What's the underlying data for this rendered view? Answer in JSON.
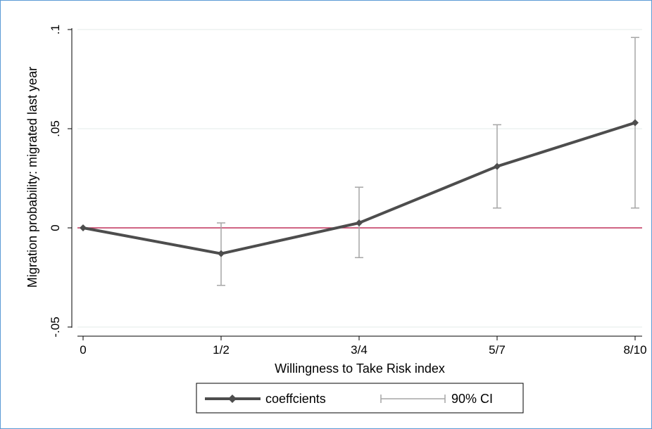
{
  "chart_data": {
    "type": "line",
    "title": "",
    "xlabel": "Willingness to Take Risk index",
    "ylabel": "Migration probability: migrated last year",
    "categories": [
      "0",
      "1/2",
      "3/4",
      "5/7",
      "8/10"
    ],
    "ylim": [
      -0.05,
      0.1
    ],
    "yticks": [
      -0.05,
      0,
      0.05,
      0.1
    ],
    "ytick_labels": [
      "-.05",
      "0",
      ".05",
      ".1"
    ],
    "grid": true,
    "series": [
      {
        "name": "coeffcients",
        "values": [
          0,
          -0.013,
          0.0025,
          0.031,
          0.053
        ],
        "ci_low": [
          null,
          -0.029,
          -0.015,
          0.01,
          0.01
        ],
        "ci_high": [
          null,
          0.0025,
          0.0205,
          0.052,
          0.096
        ]
      }
    ],
    "ci_label": "90% CI",
    "reference_line": 0,
    "legend_position": "bottom",
    "colors": {
      "series": "#4d4d4d",
      "ci": "#a6a6a6",
      "reference": "#c0305a",
      "grid": "#e3ebea",
      "frame": "#5b9bd5"
    }
  }
}
